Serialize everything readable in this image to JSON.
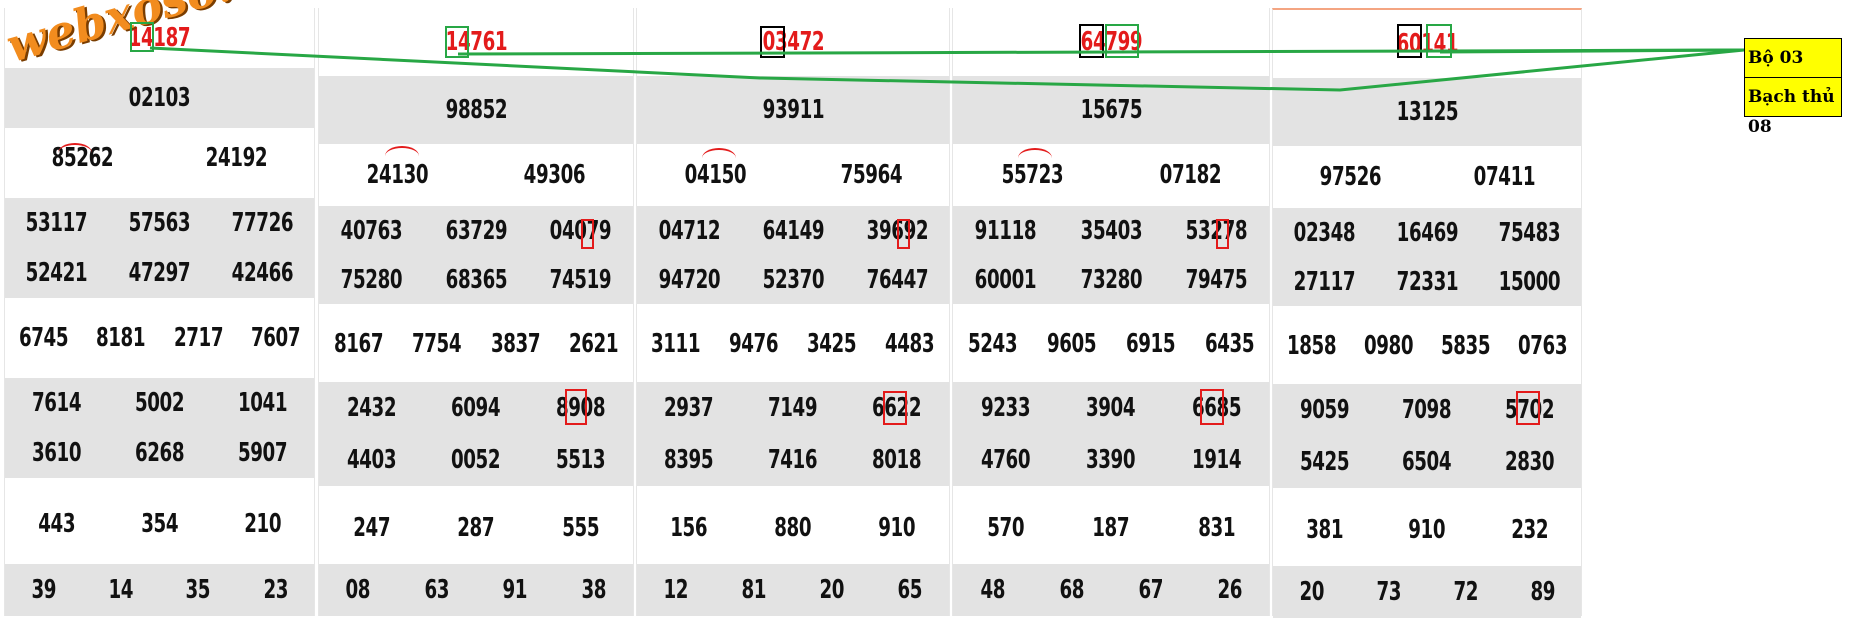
{
  "watermark": "webxoso.net",
  "legend": {
    "line1": "Bộ 03",
    "line2": "Bạch thủ 08"
  },
  "colors": {
    "highlight_red": "#e31b1b",
    "highlight_green": "#28a745",
    "legend_bg": "#ffff00",
    "logo_orange": "#f28c1e"
  },
  "columns": [
    {
      "special": "14187",
      "g1": "02103",
      "g2": [
        "85262",
        "24192"
      ],
      "g3": [
        [
          "53117",
          "57563",
          "77726"
        ],
        [
          "52421",
          "47297",
          "42466"
        ]
      ],
      "g4": [
        "6745",
        "8181",
        "2717",
        "7607"
      ],
      "g5": [
        [
          "7614",
          "5002",
          "1041"
        ],
        [
          "3610",
          "6268",
          "5907"
        ]
      ],
      "g6": [
        "443",
        "354",
        "210"
      ],
      "g7": [
        "39",
        "14",
        "35",
        "23"
      ]
    },
    {
      "special": "14761",
      "g1": "98852",
      "g2": [
        "24130",
        "49306"
      ],
      "g3": [
        [
          "40763",
          "63729",
          "04079"
        ],
        [
          "75280",
          "68365",
          "74519"
        ]
      ],
      "g4": [
        "8167",
        "7754",
        "3837",
        "2621"
      ],
      "g5": [
        [
          "2432",
          "6094",
          "8908"
        ],
        [
          "4403",
          "0052",
          "5513"
        ]
      ],
      "g6": [
        "247",
        "287",
        "555"
      ],
      "g7": [
        "08",
        "63",
        "91",
        "38"
      ]
    },
    {
      "special": "03472",
      "g1": "93911",
      "g2": [
        "04150",
        "75964"
      ],
      "g3": [
        [
          "04712",
          "64149",
          "39692"
        ],
        [
          "94720",
          "52370",
          "76447"
        ]
      ],
      "g4": [
        "3111",
        "9476",
        "3425",
        "4483"
      ],
      "g5": [
        [
          "2937",
          "7149",
          "6622"
        ],
        [
          "8395",
          "7416",
          "8018"
        ]
      ],
      "g6": [
        "156",
        "880",
        "910"
      ],
      "g7": [
        "12",
        "81",
        "20",
        "65"
      ]
    },
    {
      "special": "64799",
      "g1": "15675",
      "g2": [
        "55723",
        "07182"
      ],
      "g3": [
        [
          "91118",
          "35403",
          "53278"
        ],
        [
          "60001",
          "73280",
          "79475"
        ]
      ],
      "g4": [
        "5243",
        "9605",
        "6915",
        "6435"
      ],
      "g5": [
        [
          "9233",
          "3904",
          "6685"
        ],
        [
          "4760",
          "3390",
          "1914"
        ]
      ],
      "g6": [
        "570",
        "187",
        "831"
      ],
      "g7": [
        "48",
        "68",
        "67",
        "26"
      ]
    },
    {
      "special": "60141",
      "g1": "13125",
      "g2": [
        "97526",
        "07411"
      ],
      "g3": [
        [
          "02348",
          "16469",
          "75483"
        ],
        [
          "27117",
          "72331",
          "15000"
        ]
      ],
      "g4": [
        "1858",
        "0980",
        "5835",
        "0763"
      ],
      "g5": [
        [
          "9059",
          "7098",
          "5702"
        ],
        [
          "5425",
          "6504",
          "2830"
        ]
      ],
      "g6": [
        "381",
        "910",
        "232"
      ],
      "g7": [
        "20",
        "73",
        "72",
        "89"
      ]
    }
  ]
}
